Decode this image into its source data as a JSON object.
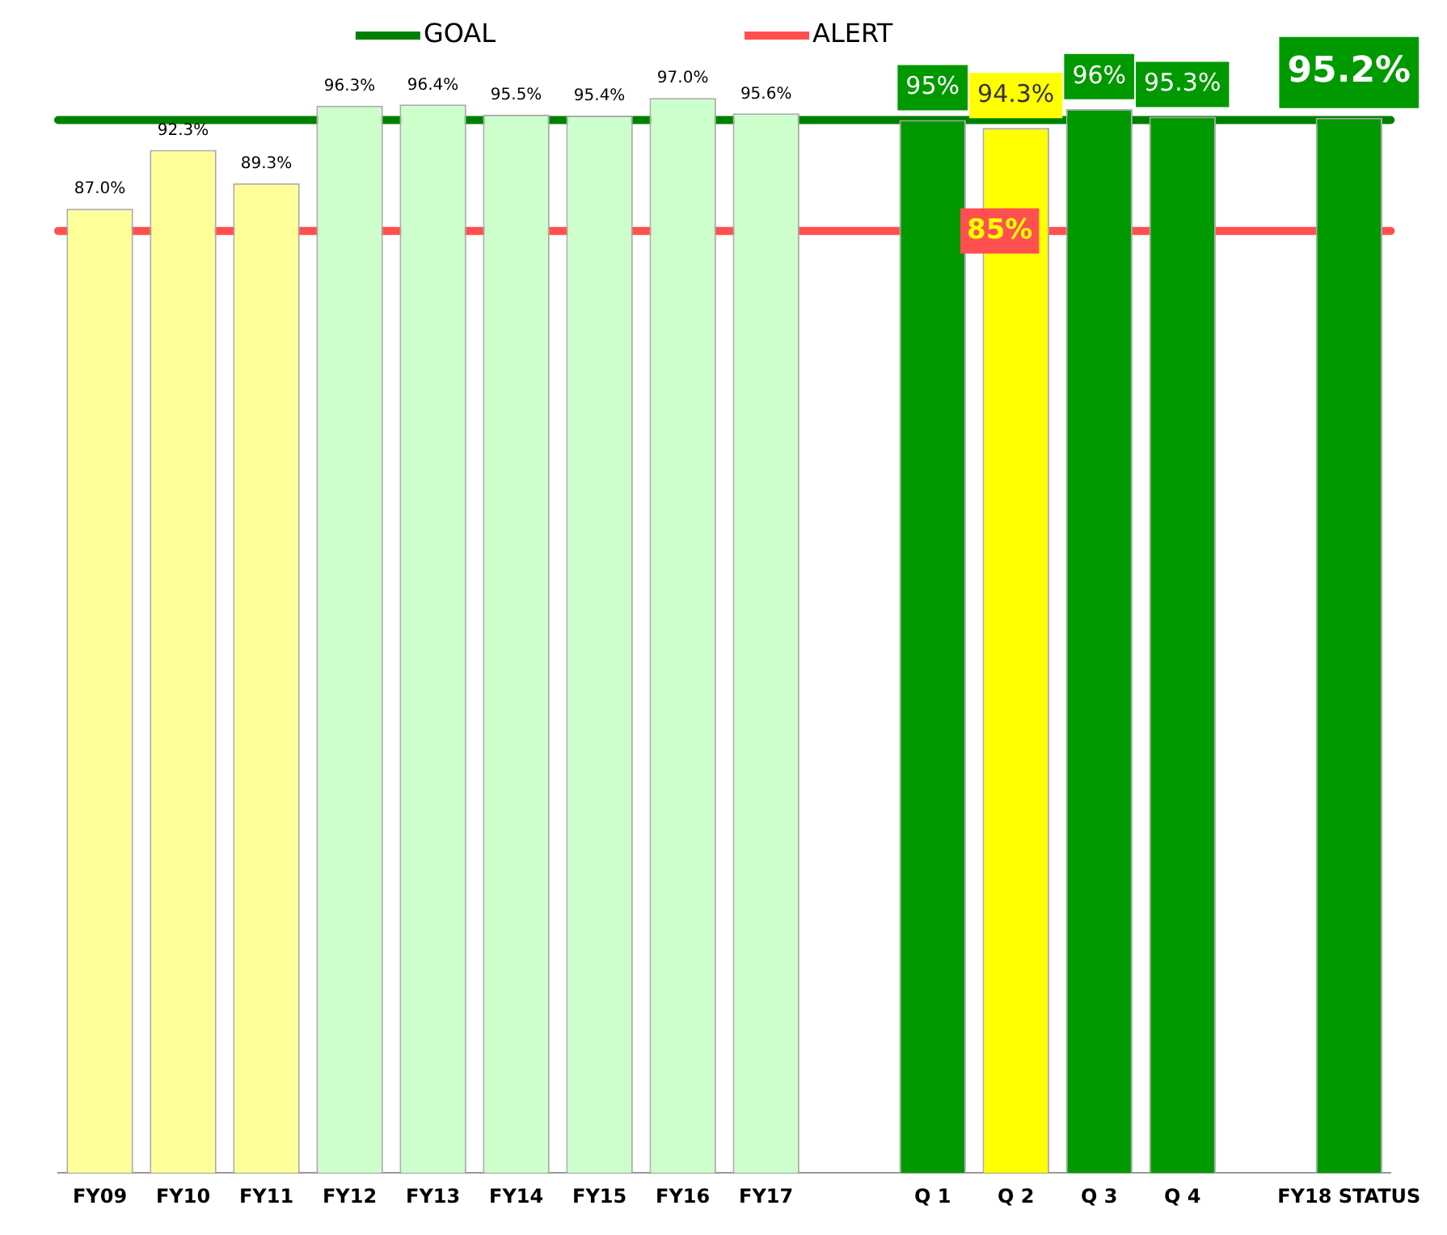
{
  "chart_data": {
    "type": "bar",
    "categories": [
      "FY09",
      "FY10",
      "FY11",
      "FY12",
      "FY13",
      "FY14",
      "FY15",
      "FY16",
      "FY17",
      null,
      "Q 1",
      "Q 2",
      "Q 3",
      "Q 4",
      null,
      "FY18 STATUS"
    ],
    "values": [
      87.0,
      92.3,
      89.3,
      96.3,
      96.4,
      95.5,
      95.4,
      97.0,
      95.6,
      null,
      95,
      94.3,
      96,
      95.3,
      null,
      95.2
    ],
    "value_labels": [
      "87.0%",
      "92.3%",
      "89.3%",
      "96.3%",
      "96.4%",
      "95.5%",
      "95.4%",
      "97.0%",
      "95.6%",
      null,
      "95%",
      "94.3%",
      "96%",
      "95.3%",
      null,
      "95.2%"
    ],
    "colors": [
      "#ffff99",
      "#ffff99",
      "#ffff99",
      "#ccffcc",
      "#ccffcc",
      "#ccffcc",
      "#ccffcc",
      "#ccffcc",
      "#ccffcc",
      "#ffffff",
      "#009900",
      "#ffff00",
      "#009900",
      "#009900",
      "#ffffff",
      "#009900"
    ],
    "tick_labels": "x",
    "grid": false,
    "legend": "top",
    "ref_lines": [
      {
        "axis": "y",
        "value": 95,
        "label": "GOAL",
        "color": "#008000"
      },
      {
        "axis": "y",
        "value": 85,
        "label": "ALERT",
        "color": "#ff5050"
      }
    ],
    "annotations": [
      {
        "text": "85%",
        "x": "Q 2",
        "y": 85
      }
    ]
  }
}
